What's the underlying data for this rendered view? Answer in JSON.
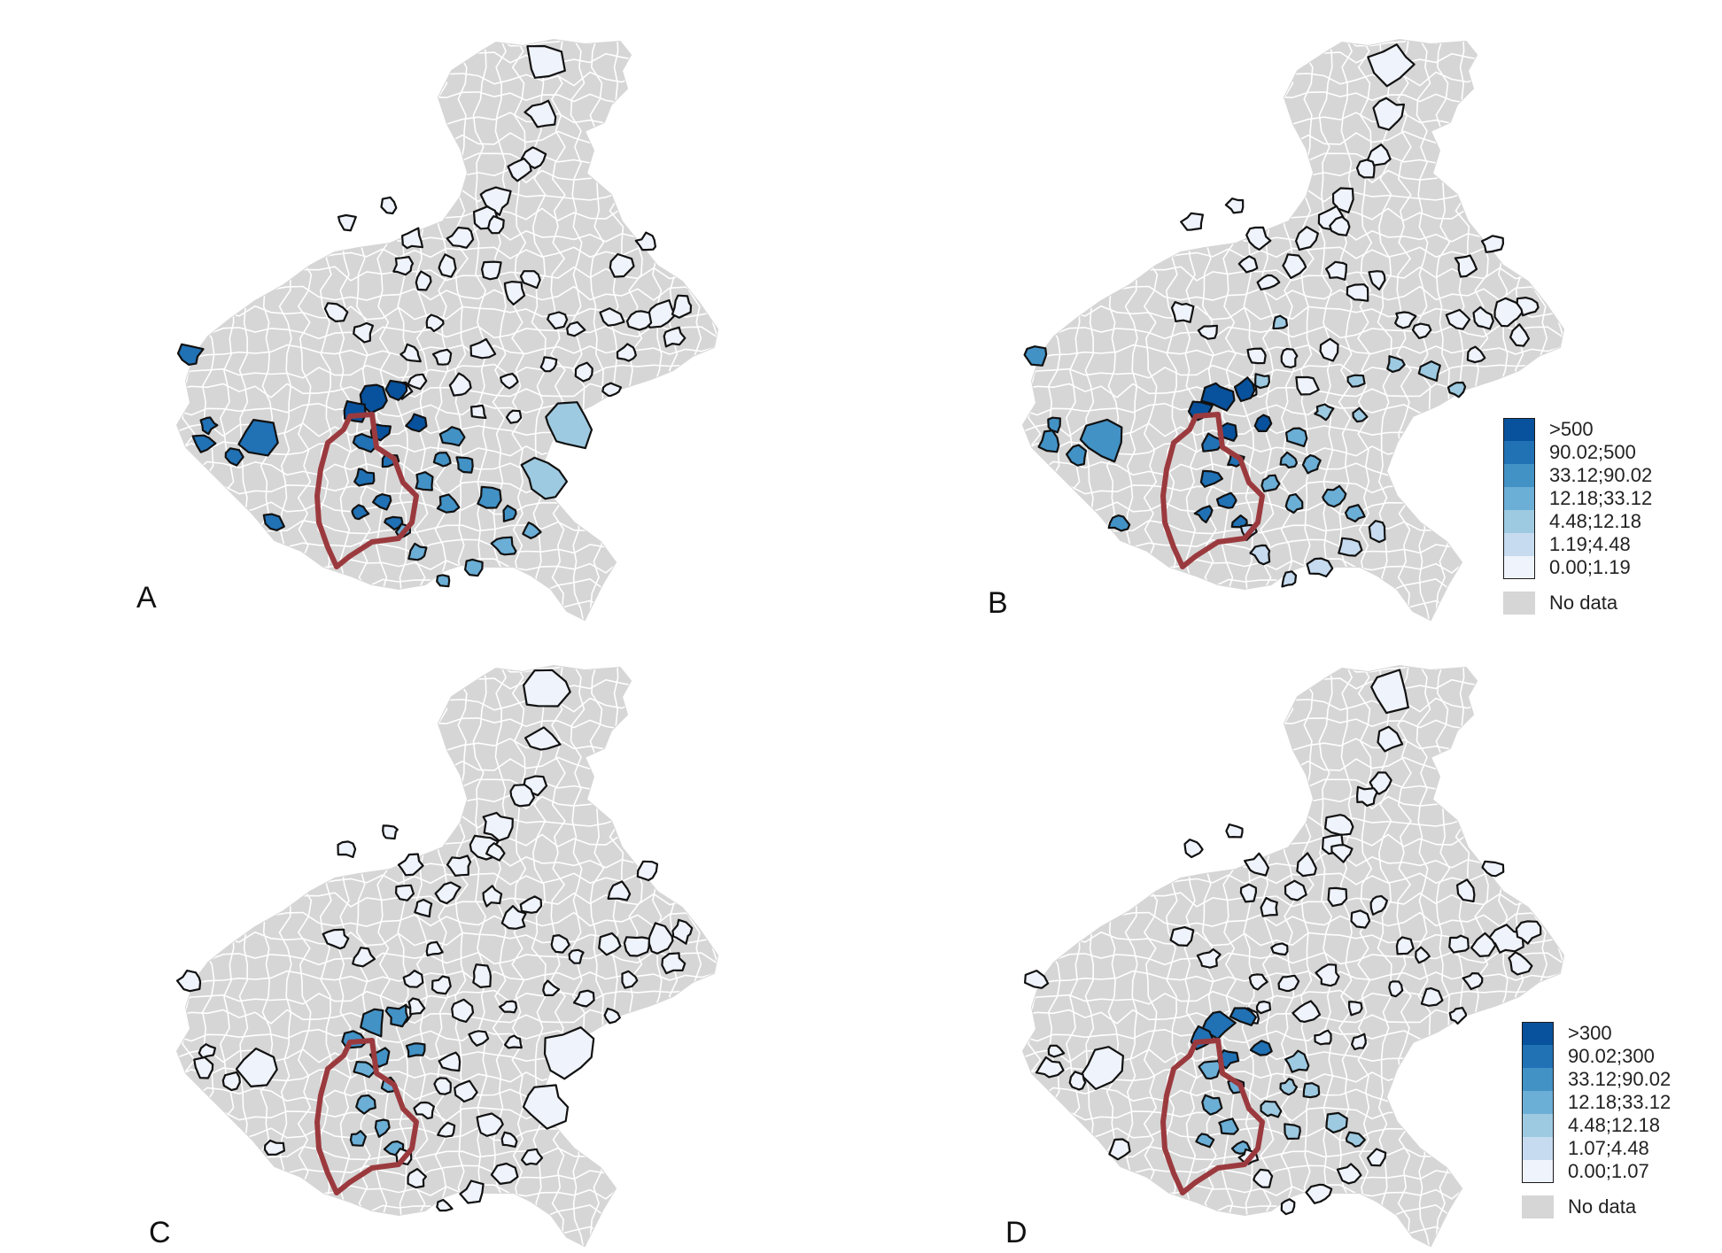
{
  "colors": {
    "background": "#d6d6d6",
    "boundary": "#ffffff",
    "outline": "#111111",
    "highlight": "#9b3a3e",
    "classes": [
      "#eff3fb",
      "#c6dbef",
      "#9ecae1",
      "#6baed6",
      "#4292c6",
      "#2171b5",
      "#08519c"
    ]
  },
  "panels": [
    {
      "letter": "A",
      "fills": {
        "west": 5,
        "core": 6,
        "verona": 5,
        "padova": 4,
        "lagoon": 2,
        "south": 3,
        "north": 0,
        "east": 0,
        "spread": 0
      }
    },
    {
      "letter": "B",
      "fills": {
        "west": 4,
        "core": 6,
        "verona": 5,
        "padova": 3,
        "lagoon": null,
        "south": 1,
        "north": 0,
        "east": 0,
        "spread": 2
      },
      "legend": {
        "classes": [
          ">500",
          "90.02;500",
          "33.12;90.02",
          "12.18;33.12",
          "4.48;12.18",
          "1.19;4.48",
          "0.00;1.19"
        ],
        "no_data": "No data"
      }
    },
    {
      "letter": "C",
      "fills": {
        "west": 0,
        "core": 4,
        "verona": 3,
        "padova": 0,
        "lagoon": 0,
        "south": 0,
        "north": 0,
        "east": 0,
        "spread": 0
      }
    },
    {
      "letter": "D",
      "fills": {
        "west": 0,
        "core": 5,
        "verona": 3,
        "padova": 2,
        "lagoon": null,
        "south": 0,
        "north": 0,
        "east": 0,
        "spread": 0
      },
      "legend": {
        "classes": [
          ">300",
          "90.02;300",
          "33.12;90.02",
          "12.18;33.12",
          "4.48;12.18",
          "1.07;4.48",
          "0.00;1.07"
        ],
        "no_data": "No data"
      }
    }
  ]
}
